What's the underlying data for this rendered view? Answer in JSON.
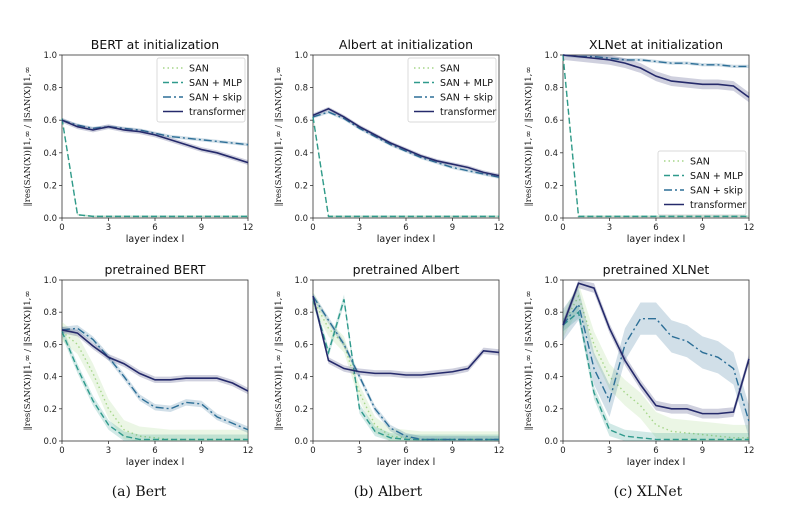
{
  "colors": {
    "SAN": "#a6d68a",
    "SAN + MLP": "#2f9a8c",
    "SAN + skip": "#2d6f97",
    "transformer": "#252a6b"
  },
  "legend_labels": [
    "SAN",
    "SAN + MLP",
    "SAN + skip",
    "transformer"
  ],
  "chart_data": [
    {
      "type": "line",
      "title": "BERT at initialization",
      "xlabel": "layer index l",
      "ylabel": "‖res(SAN(X))‖1,∞ / ‖SAN(X)‖1,∞",
      "xlim": [
        0,
        12
      ],
      "ylim": [
        0,
        1
      ],
      "xticks": [
        0,
        3,
        6,
        9,
        12
      ],
      "yticks": [
        0.0,
        0.2,
        0.4,
        0.6,
        0.8,
        1.0
      ],
      "legend_position": "top-right",
      "x": [
        0,
        1,
        2,
        3,
        4,
        5,
        6,
        7,
        8,
        9,
        10,
        11,
        12
      ],
      "series": [
        {
          "name": "SAN",
          "values": [
            0.61,
            0.02,
            0.01,
            0.01,
            0.01,
            0.01,
            0.01,
            0.01,
            0.01,
            0.01,
            0.01,
            0.01,
            0.01
          ],
          "band": 0.005
        },
        {
          "name": "SAN + MLP",
          "values": [
            0.61,
            0.02,
            0.01,
            0.01,
            0.01,
            0.01,
            0.01,
            0.01,
            0.01,
            0.01,
            0.01,
            0.01,
            0.01
          ],
          "band": 0.005
        },
        {
          "name": "SAN + skip",
          "values": [
            0.6,
            0.57,
            0.55,
            0.56,
            0.55,
            0.54,
            0.52,
            0.5,
            0.49,
            0.48,
            0.47,
            0.46,
            0.45
          ],
          "band": 0.01
        },
        {
          "name": "transformer",
          "values": [
            0.6,
            0.56,
            0.54,
            0.56,
            0.54,
            0.53,
            0.51,
            0.48,
            0.45,
            0.42,
            0.4,
            0.37,
            0.34
          ],
          "band": 0.015
        }
      ]
    },
    {
      "type": "line",
      "title": "Albert at initialization",
      "xlabel": "layer index l",
      "xlim": [
        0,
        12
      ],
      "ylim": [
        0,
        1
      ],
      "xticks": [
        0,
        3,
        6,
        9,
        12
      ],
      "yticks": [
        0.0,
        0.2,
        0.4,
        0.6,
        0.8,
        1.0
      ],
      "legend_position": "top-right",
      "x": [
        0,
        1,
        2,
        3,
        4,
        5,
        6,
        7,
        8,
        9,
        10,
        11,
        12
      ],
      "series": [
        {
          "name": "SAN",
          "values": [
            0.62,
            0.01,
            0.01,
            0.01,
            0.01,
            0.01,
            0.01,
            0.01,
            0.01,
            0.01,
            0.01,
            0.01,
            0.01
          ],
          "band": 0.005
        },
        {
          "name": "SAN + MLP",
          "values": [
            0.62,
            0.01,
            0.01,
            0.01,
            0.01,
            0.01,
            0.01,
            0.01,
            0.01,
            0.01,
            0.01,
            0.01,
            0.01
          ],
          "band": 0.005
        },
        {
          "name": "SAN + skip",
          "values": [
            0.62,
            0.65,
            0.61,
            0.55,
            0.5,
            0.45,
            0.41,
            0.37,
            0.34,
            0.31,
            0.29,
            0.27,
            0.25
          ],
          "band": 0.01
        },
        {
          "name": "transformer",
          "values": [
            0.63,
            0.67,
            0.62,
            0.56,
            0.51,
            0.46,
            0.42,
            0.38,
            0.35,
            0.33,
            0.31,
            0.28,
            0.26
          ],
          "band": 0.012
        }
      ]
    },
    {
      "type": "line",
      "title": "XLNet at initialization",
      "xlabel": "layer index l",
      "xlim": [
        0,
        12
      ],
      "ylim": [
        0,
        1
      ],
      "xticks": [
        0,
        3,
        6,
        9,
        12
      ],
      "yticks": [
        0.0,
        0.2,
        0.4,
        0.6,
        0.8,
        1.0
      ],
      "legend_position": "bottom-right",
      "x": [
        0,
        1,
        2,
        3,
        4,
        5,
        6,
        7,
        8,
        9,
        10,
        11,
        12
      ],
      "series": [
        {
          "name": "SAN",
          "values": [
            1.0,
            0.01,
            0.01,
            0.01,
            0.01,
            0.01,
            0.01,
            0.01,
            0.01,
            0.01,
            0.01,
            0.01,
            0.01
          ],
          "band": 0.005
        },
        {
          "name": "SAN + MLP",
          "values": [
            1.0,
            0.01,
            0.01,
            0.01,
            0.01,
            0.01,
            0.01,
            0.01,
            0.01,
            0.01,
            0.01,
            0.01,
            0.01
          ],
          "band": 0.005
        },
        {
          "name": "SAN + skip",
          "values": [
            1.0,
            0.99,
            0.99,
            0.98,
            0.97,
            0.97,
            0.96,
            0.95,
            0.95,
            0.94,
            0.94,
            0.93,
            0.93
          ],
          "band": 0.01
        },
        {
          "name": "transformer",
          "values": [
            1.0,
            0.99,
            0.98,
            0.97,
            0.95,
            0.92,
            0.87,
            0.84,
            0.83,
            0.82,
            0.82,
            0.81,
            0.74
          ],
          "band": 0.03
        }
      ]
    },
    {
      "type": "line",
      "title": "pretrained BERT",
      "xlabel": "layer index l",
      "xlim": [
        0,
        12
      ],
      "ylim": [
        0,
        1
      ],
      "xticks": [
        0,
        3,
        6,
        9,
        12
      ],
      "yticks": [
        0.0,
        0.2,
        0.4,
        0.6,
        0.8,
        1.0
      ],
      "x": [
        0,
        1,
        2,
        3,
        4,
        5,
        6,
        7,
        8,
        9,
        10,
        11,
        12
      ],
      "series": [
        {
          "name": "SAN",
          "values": [
            0.68,
            0.6,
            0.42,
            0.2,
            0.07,
            0.03,
            0.02,
            0.01,
            0.01,
            0.01,
            0.01,
            0.01,
            0.01
          ],
          "band": 0.06
        },
        {
          "name": "SAN + MLP",
          "values": [
            0.68,
            0.45,
            0.25,
            0.1,
            0.03,
            0.01,
            0.01,
            0.01,
            0.01,
            0.01,
            0.01,
            0.01,
            0.01
          ],
          "band": 0.03
        },
        {
          "name": "SAN + skip",
          "values": [
            0.69,
            0.7,
            0.63,
            0.52,
            0.4,
            0.27,
            0.21,
            0.2,
            0.24,
            0.23,
            0.15,
            0.11,
            0.07
          ],
          "band": 0.02
        },
        {
          "name": "transformer",
          "values": [
            0.69,
            0.67,
            0.59,
            0.52,
            0.48,
            0.42,
            0.38,
            0.38,
            0.39,
            0.39,
            0.39,
            0.36,
            0.31
          ],
          "band": 0.02
        }
      ]
    },
    {
      "type": "line",
      "title": "pretrained Albert",
      "xlabel": "layer index l",
      "xlim": [
        0,
        12
      ],
      "ylim": [
        0,
        1
      ],
      "xticks": [
        0,
        3,
        6,
        9,
        12
      ],
      "yticks": [
        0.0,
        0.2,
        0.4,
        0.6,
        0.8,
        1.0
      ],
      "x": [
        0,
        1,
        2,
        3,
        4,
        5,
        6,
        7,
        8,
        9,
        10,
        11,
        12
      ],
      "series": [
        {
          "name": "SAN",
          "values": [
            0.88,
            0.7,
            0.6,
            0.3,
            0.1,
            0.03,
            0.02,
            0.01,
            0.01,
            0.01,
            0.01,
            0.01,
            0.01
          ],
          "band": 0.05
        },
        {
          "name": "SAN + MLP",
          "values": [
            0.88,
            0.55,
            0.88,
            0.2,
            0.06,
            0.02,
            0.01,
            0.01,
            0.01,
            0.01,
            0.01,
            0.01,
            0.01
          ],
          "band": 0.03
        },
        {
          "name": "SAN + skip",
          "values": [
            0.9,
            0.75,
            0.6,
            0.4,
            0.2,
            0.08,
            0.03,
            0.01,
            0.01,
            0.01,
            0.01,
            0.01,
            0.01
          ],
          "band": 0.02
        },
        {
          "name": "transformer",
          "values": [
            0.9,
            0.5,
            0.45,
            0.43,
            0.42,
            0.42,
            0.41,
            0.41,
            0.42,
            0.43,
            0.45,
            0.56,
            0.55
          ],
          "band": 0.02
        }
      ]
    },
    {
      "type": "line",
      "title": "pretrained XLNet",
      "xlabel": "layer index l",
      "xlim": [
        0,
        12
      ],
      "ylim": [
        0,
        1
      ],
      "xticks": [
        0,
        3,
        6,
        9,
        12
      ],
      "yticks": [
        0.0,
        0.2,
        0.4,
        0.6,
        0.8,
        1.0
      ],
      "x": [
        0,
        1,
        2,
        3,
        4,
        5,
        6,
        7,
        8,
        9,
        10,
        11,
        12
      ],
      "series": [
        {
          "name": "SAN",
          "values": [
            0.72,
            0.9,
            0.6,
            0.4,
            0.3,
            0.22,
            0.1,
            0.06,
            0.05,
            0.04,
            0.03,
            0.02,
            0.02
          ],
          "band": 0.08
        },
        {
          "name": "SAN + MLP",
          "values": [
            0.72,
            0.8,
            0.3,
            0.07,
            0.03,
            0.02,
            0.01,
            0.01,
            0.01,
            0.01,
            0.01,
            0.01,
            0.01
          ],
          "band": 0.04
        },
        {
          "name": "SAN + skip",
          "values": [
            0.72,
            0.85,
            0.45,
            0.25,
            0.6,
            0.76,
            0.76,
            0.65,
            0.62,
            0.55,
            0.52,
            0.45,
            0.12
          ],
          "band": 0.1
        },
        {
          "name": "transformer",
          "values": [
            0.72,
            0.98,
            0.95,
            0.7,
            0.5,
            0.35,
            0.22,
            0.2,
            0.2,
            0.17,
            0.17,
            0.18,
            0.51
          ],
          "band": 0.03
        }
      ]
    }
  ],
  "captions": [
    "(a) Bert",
    "(b) Albert",
    "(c) XLNet"
  ]
}
